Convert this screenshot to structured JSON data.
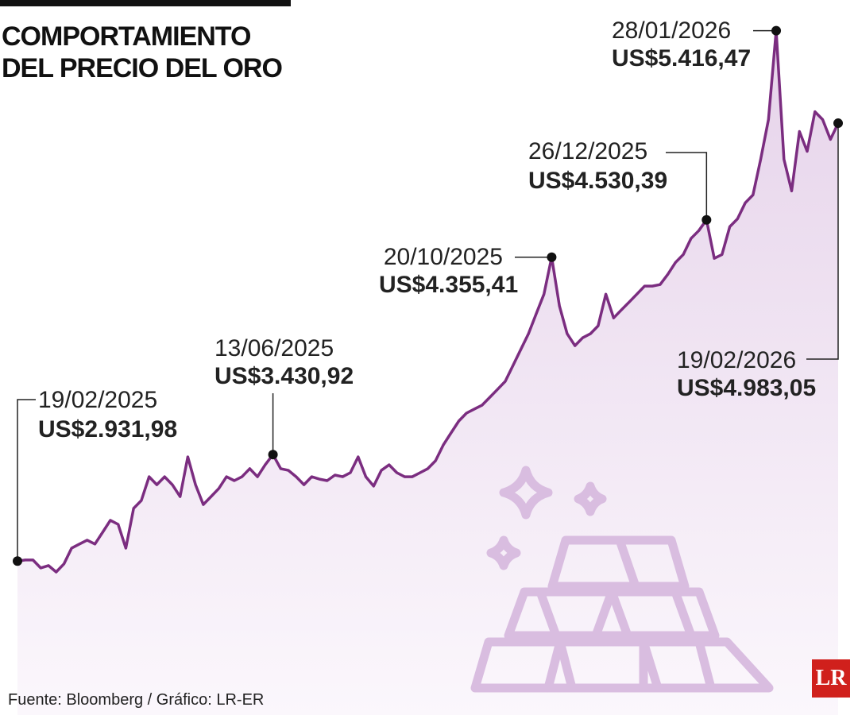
{
  "chart_data": {
    "type": "line",
    "title": "COMPORTAMIENTO DEL PRECIO DEL ORO",
    "source": "Fuente: Bloomberg / Gráfico: LR-ER",
    "logo": "LR",
    "color": "#7b2d80",
    "ylim": [
      2360,
      5560
    ],
    "categories": [
      "19/02/2025",
      null,
      null,
      null,
      null,
      null,
      null,
      null,
      null,
      null,
      null,
      null,
      null,
      null,
      null,
      null,
      null,
      null,
      null,
      null,
      null,
      null,
      null,
      null,
      null,
      null,
      null,
      null,
      null,
      null,
      null,
      null,
      null,
      "13/06/2025",
      null,
      null,
      null,
      null,
      null,
      null,
      null,
      null,
      null,
      null,
      null,
      null,
      null,
      null,
      null,
      null,
      null,
      null,
      null,
      null,
      null,
      null,
      null,
      null,
      null,
      null,
      null,
      null,
      null,
      null,
      null,
      null,
      null,
      null,
      null,
      "20/10/2025",
      null,
      null,
      null,
      null,
      null,
      null,
      null,
      null,
      null,
      null,
      null,
      null,
      null,
      null,
      null,
      null,
      null,
      null,
      null,
      "26/12/2025",
      null,
      null,
      null,
      null,
      null,
      null,
      null,
      null,
      "28/01/2026",
      null,
      null,
      null,
      null,
      null,
      null,
      null,
      "19/02/2026"
    ],
    "values": [
      2931.98,
      2937,
      2937,
      2900,
      2911,
      2881,
      2919,
      2993,
      3012,
      3030,
      3012,
      3067,
      3123,
      3104,
      2993,
      3179,
      3216,
      3327,
      3290,
      3327,
      3290,
      3234,
      3420,
      3290,
      3197,
      3234,
      3272,
      3327,
      3309,
      3327,
      3365,
      3327,
      3383,
      3430.92,
      3365,
      3357,
      3327,
      3290,
      3327,
      3316,
      3309,
      3335,
      3327,
      3346,
      3420,
      3327,
      3283,
      3357,
      3383,
      3346,
      3327,
      3327,
      3346,
      3365,
      3402,
      3476,
      3532,
      3588,
      3625,
      3644,
      3662,
      3699,
      3736,
      3774,
      3848,
      3922,
      3997,
      4090,
      4182,
      4355.41,
      4127,
      3997,
      3941,
      3978,
      3997,
      4034,
      4182,
      4071,
      4108,
      4145,
      4182,
      4220,
      4220,
      4227,
      4275,
      4331,
      4368,
      4443,
      4480,
      4530.39,
      4350,
      4368,
      4498,
      4535,
      4610,
      4647,
      4814,
      5000,
      5416.47,
      4814,
      4666,
      4944,
      4851,
      5037,
      5000,
      4907,
      4983.05
    ],
    "value_labels": [
      "US$2.931,98",
      null,
      null,
      null,
      null,
      null,
      null,
      null,
      null,
      null,
      null,
      null,
      null,
      null,
      null,
      null,
      null,
      null,
      null,
      null,
      null,
      null,
      null,
      null,
      null,
      null,
      null,
      null,
      null,
      null,
      null,
      null,
      null,
      "US$3.430,92",
      null,
      null,
      null,
      null,
      null,
      null,
      null,
      null,
      null,
      null,
      null,
      null,
      null,
      null,
      null,
      null,
      null,
      null,
      null,
      null,
      null,
      null,
      null,
      null,
      null,
      null,
      null,
      null,
      null,
      null,
      null,
      null,
      null,
      null,
      null,
      "US$4.355,41",
      null,
      null,
      null,
      null,
      null,
      null,
      null,
      null,
      null,
      null,
      null,
      null,
      null,
      null,
      null,
      null,
      null,
      null,
      null,
      "US$4.530,39",
      null,
      null,
      null,
      null,
      null,
      null,
      null,
      null,
      "US$5.416,47",
      null,
      null,
      null,
      null,
      null,
      null,
      null,
      "US$4.983,05"
    ]
  }
}
